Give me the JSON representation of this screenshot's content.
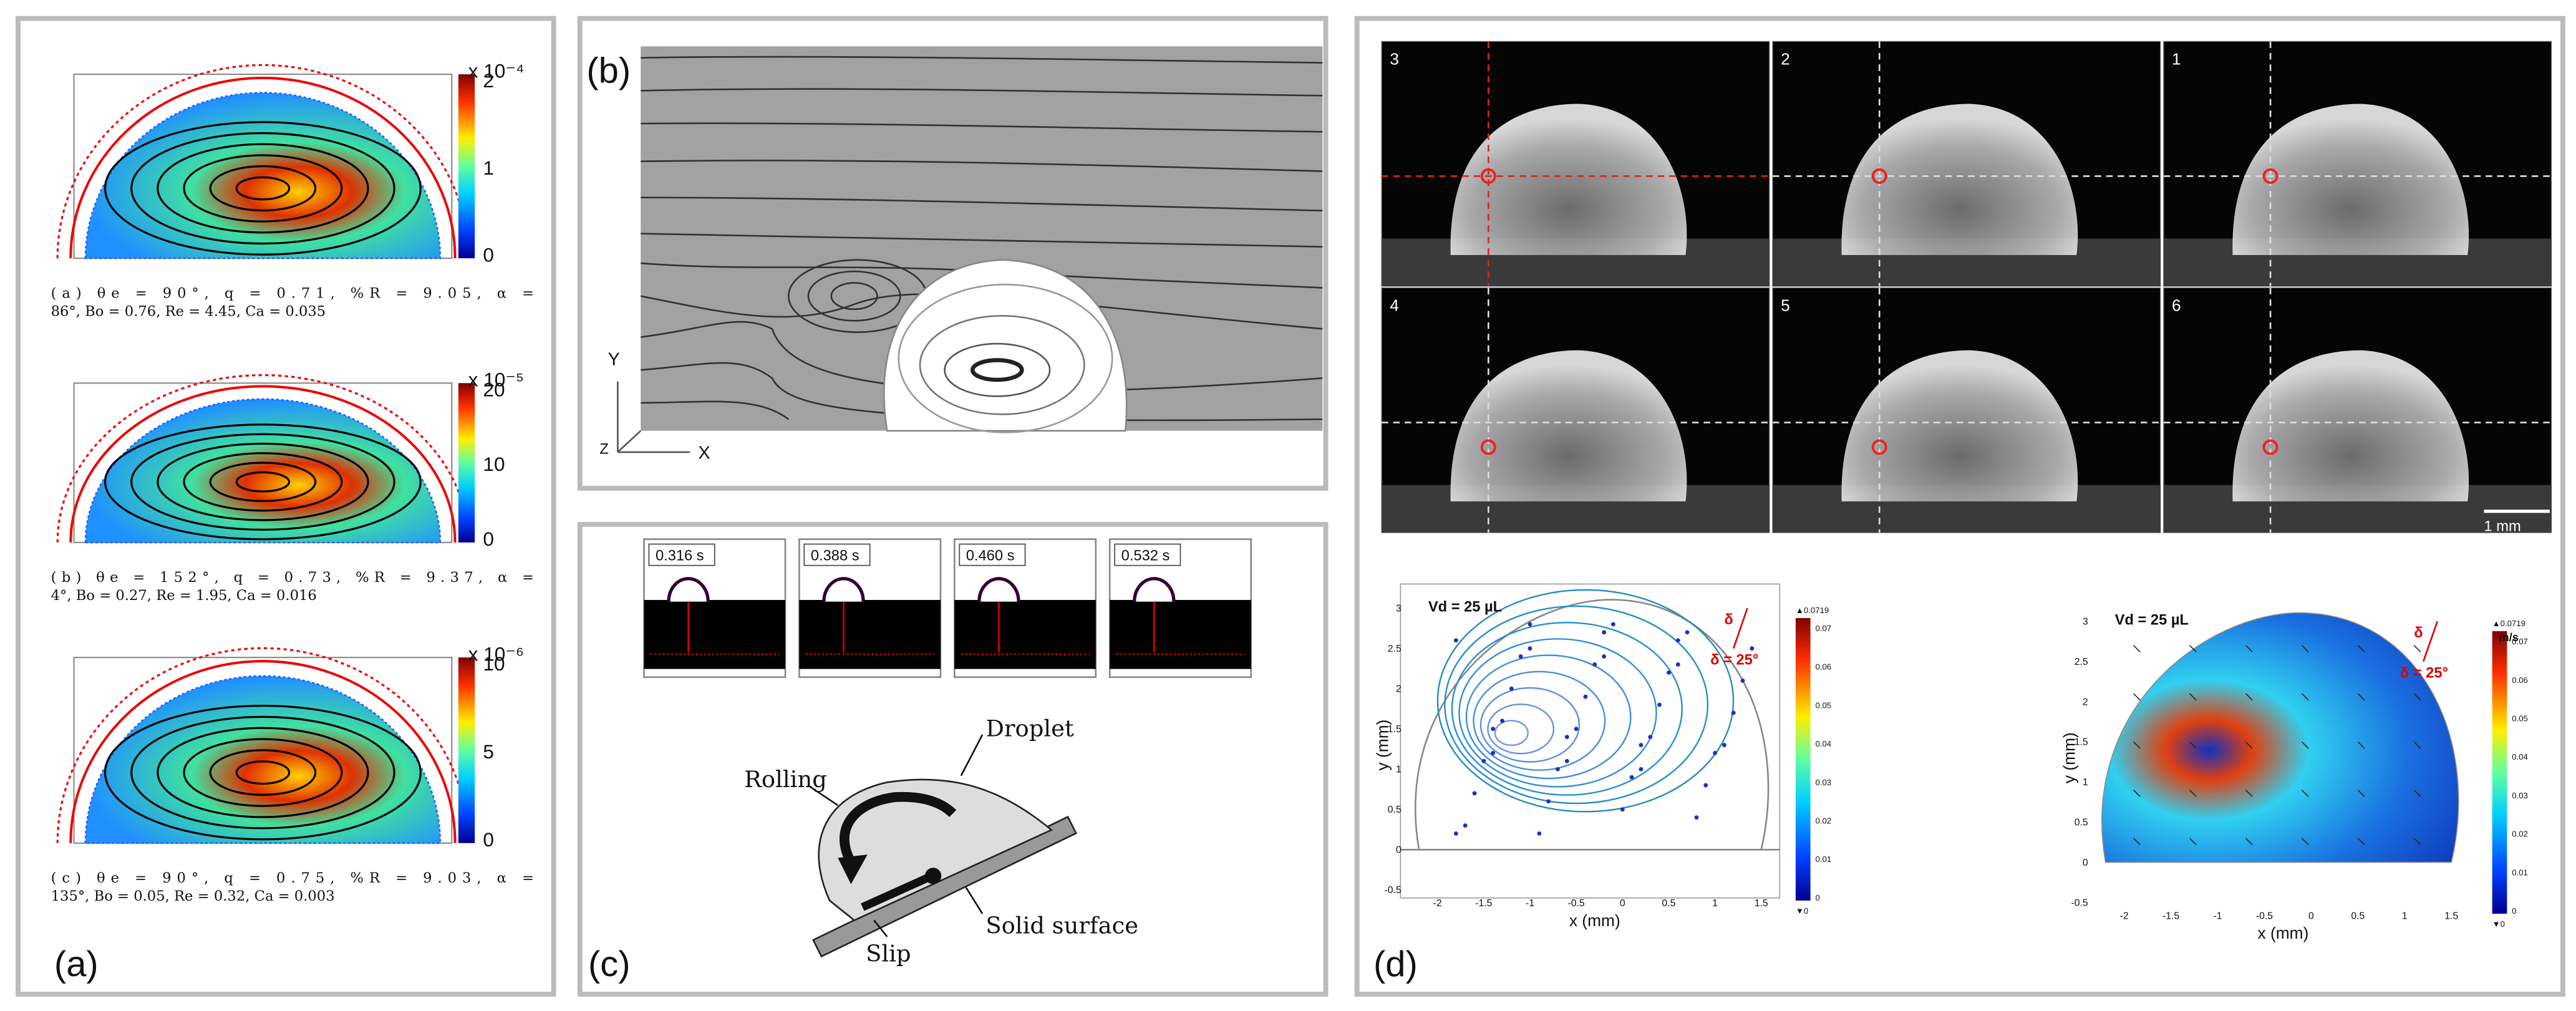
{
  "panel_a": {
    "label": "(a)",
    "plots": [
      {
        "exponent": "x 10⁻⁴",
        "colorbar_ticks": [
          "2",
          "1",
          "0"
        ],
        "caption": [
          "(a)  θe  =  90°, q  =  0.71, %R  =  9.05, α  =",
          "86°, Bo = 0.76, Re = 4.45, Ca = 0.035"
        ]
      },
      {
        "exponent": "x 10⁻⁵",
        "colorbar_ticks": [
          "20",
          "10",
          "0"
        ],
        "caption": [
          "(b)  θe  =  152°, q  =  0.73, %R  =  9.37, α  =",
          "4°, Bo = 0.27, Re = 1.95, Ca = 0.016"
        ]
      },
      {
        "exponent": "x 10⁻⁶",
        "colorbar_ticks": [
          "10",
          "5",
          "0"
        ],
        "caption": [
          "(c)  θe  =  90°, q  =  0.75, %R  =  9.03, α  =",
          "135°, Bo = 0.05, Re = 0.32, Ca = 0.003"
        ]
      }
    ]
  },
  "panel_b": {
    "label": "(b)",
    "axes": {
      "y": "Y",
      "z": "Z",
      "x": "X"
    }
  },
  "panel_c": {
    "label": "(c)",
    "times": [
      "0.316 s",
      "0.388 s",
      "0.460 s",
      "0.532 s"
    ],
    "labels": {
      "droplet": "Droplet",
      "rolling": "Rolling",
      "slip": "Slip",
      "surface": "Solid surface"
    }
  },
  "panel_d": {
    "label": "(d)",
    "frames": [
      "3",
      "2",
      "1",
      "4",
      "5",
      "6"
    ],
    "scale_bar": "1 mm",
    "plots": [
      {
        "volume": "Vd = 25 µL",
        "angle_symbol": "δ",
        "angle": "δ = 25°",
        "x_label": "x (mm)",
        "y_label": "y (mm)",
        "xticks": [
          "-2",
          "-1.5",
          "-1",
          "-0.5",
          "0",
          "0.5",
          "1",
          "1.5"
        ],
        "yticks": [
          "-0.5",
          "0",
          "0.5",
          "1",
          "1.5",
          "2",
          "2.5",
          "3"
        ],
        "colorbar_max": "▲0.0719",
        "colorbar_ticks": [
          "0.07",
          "0.06",
          "0.05",
          "0.04",
          "0.03",
          "0.02",
          "0.01",
          "0"
        ],
        "colorbar_min": "▼0"
      },
      {
        "volume": "Vd = 25 µL",
        "angle_symbol": "δ",
        "angle": "δ = 25°",
        "x_label": "x (mm)",
        "y_label": "y (mm)",
        "xticks": [
          "-2",
          "-1.5",
          "-1",
          "-0.5",
          "0",
          "0.5",
          "1",
          "1.5"
        ],
        "yticks": [
          "-0.5",
          "0",
          "0.5",
          "1",
          "1.5",
          "2",
          "2.5",
          "3"
        ],
        "colorbar_max": "▲0.0719",
        "colorbar_unit": "m/s",
        "colorbar_ticks": [
          "0.07",
          "0.06",
          "0.05",
          "0.04",
          "0.03",
          "0.02",
          "0.01",
          "0"
        ],
        "colorbar_min": "▼0"
      }
    ]
  }
}
